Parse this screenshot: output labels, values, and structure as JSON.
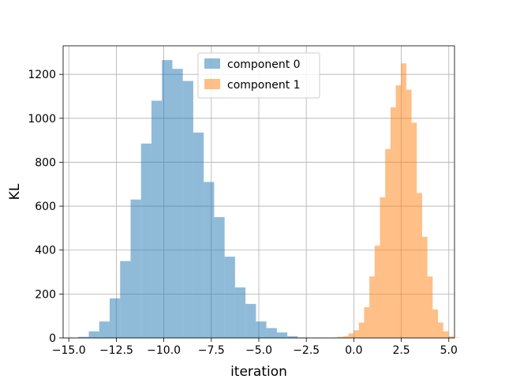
{
  "chart_data": {
    "type": "histogram",
    "title": "",
    "xlabel": "iteration",
    "ylabel": "KL",
    "xlim": [
      -15.3,
      5.3
    ],
    "ylim": [
      0,
      1330
    ],
    "xticks": [
      -15.0,
      -12.5,
      -10.0,
      -7.5,
      -5.0,
      -2.5,
      0.0,
      2.5,
      5.0
    ],
    "xtick_labels": [
      "−15.0",
      "−12.5",
      "−10.0",
      "−7.5",
      "−5.0",
      "−2.5",
      "0.0",
      "2.5",
      "5.0"
    ],
    "yticks": [
      0,
      200,
      400,
      600,
      800,
      1000,
      1200
    ],
    "ytick_labels": [
      "0",
      "200",
      "400",
      "600",
      "800",
      "1000",
      "1200"
    ],
    "grid": true,
    "legend_position": "upper-center",
    "series": [
      {
        "name": "component 0",
        "color": "#1f77b4",
        "alpha": 0.5,
        "bin_start": -14.5,
        "bin_width": 0.55,
        "counts": [
          5,
          30,
          75,
          180,
          350,
          630,
          885,
          1080,
          1265,
          1225,
          1170,
          935,
          710,
          550,
          370,
          230,
          155,
          75,
          45,
          25,
          8,
          2
        ]
      },
      {
        "name": "component 1",
        "color": "#ff7f0e",
        "alpha": 0.5,
        "bin_start": -1.4,
        "bin_width": 0.2775,
        "counts": [
          1,
          2,
          5,
          8,
          20,
          35,
          70,
          140,
          280,
          420,
          640,
          860,
          1050,
          1150,
          1250,
          1130,
          980,
          660,
          460,
          280,
          130,
          70,
          30,
          7,
          2
        ]
      }
    ]
  }
}
